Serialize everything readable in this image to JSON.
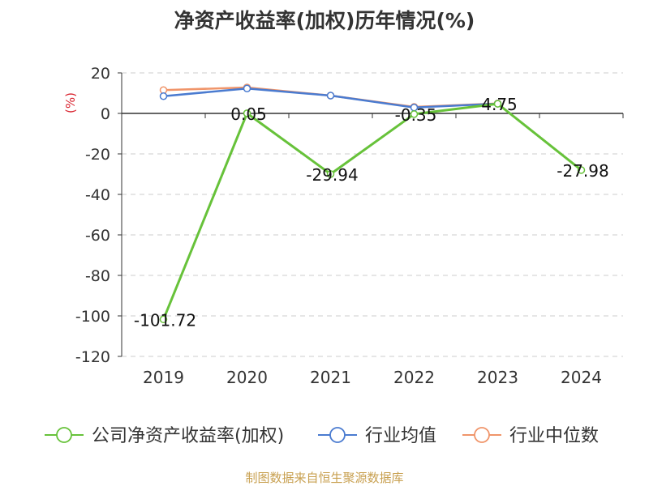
{
  "footer": "制图数据来自恒生聚源数据库",
  "chart_data": {
    "type": "line",
    "title": "净资产收益率(加权)历年情况(%)",
    "ylabel": "(%)",
    "categories": [
      "2019",
      "2020",
      "2021",
      "2022",
      "2023",
      "2024"
    ],
    "ylim": [
      -120,
      20
    ],
    "yticks": [
      20,
      0,
      -20,
      -40,
      -60,
      -80,
      -100,
      -120
    ],
    "grid": true,
    "legend_position": "bottom",
    "series": [
      {
        "name": "公司净资产收益率(加权)",
        "color": "#67c23a",
        "values": [
          -101.72,
          0.05,
          -29.94,
          -0.35,
          4.75,
          -27.98
        ],
        "labels": [
          "-101.72",
          "0.05",
          "-29.94",
          "-0.35",
          "4.75",
          "-27.98"
        ]
      },
      {
        "name": "行业均值",
        "color": "#4a7bd0",
        "values": [
          8.5,
          12.3,
          8.8,
          2.9,
          4.8,
          null
        ]
      },
      {
        "name": "行业中位数",
        "color": "#f0956a",
        "values": [
          11.5,
          12.8,
          8.8,
          3.2,
          4.9,
          null
        ]
      }
    ]
  }
}
